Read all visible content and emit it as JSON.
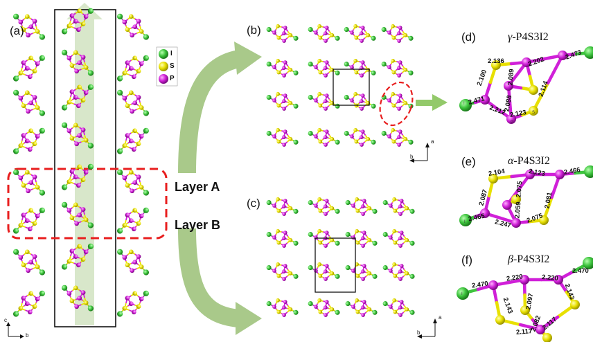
{
  "panels": {
    "a": "(a)",
    "b": "(b)",
    "c": "(c)",
    "d": "(d)",
    "e": "(e)",
    "f": "(f)"
  },
  "layers": {
    "a": "Layer A",
    "b": "Layer B"
  },
  "legend": {
    "I": "I",
    "S": "S",
    "P": "P"
  },
  "titles": {
    "d": {
      "greek": "γ",
      "formula": "-P4S3I2"
    },
    "e": {
      "greek": "α",
      "formula": "-P4S3I2"
    },
    "f": {
      "greek": "β",
      "formula": "-P4S3I2"
    }
  },
  "axes": {
    "a": "a",
    "b": "b",
    "c": "c"
  },
  "atom_labels": {
    "I": "I",
    "P": "P",
    "S": "S"
  },
  "colors": {
    "I": "#3ec43e",
    "S": "#e8e000",
    "P": "#d020d8",
    "arrow": "#a9c98a",
    "dashed": "#e81e1e"
  },
  "bonds": {
    "d": [
      "2.136",
      "2.100",
      "2.089",
      "2.202",
      "2.473",
      "2.471",
      "2.212",
      "2.088",
      "2.114",
      "2.123"
    ],
    "e": [
      "2.104",
      "2.123",
      "2.466",
      "2.075",
      "2.087",
      "2.081",
      "2.059",
      "2.465",
      "2.247",
      "2.075"
    ],
    "f": [
      "2.470",
      "2.220",
      "2.220",
      "2.470",
      "2.097",
      "2.143",
      "2.143",
      "2.082",
      "2.117",
      "2.117"
    ]
  }
}
